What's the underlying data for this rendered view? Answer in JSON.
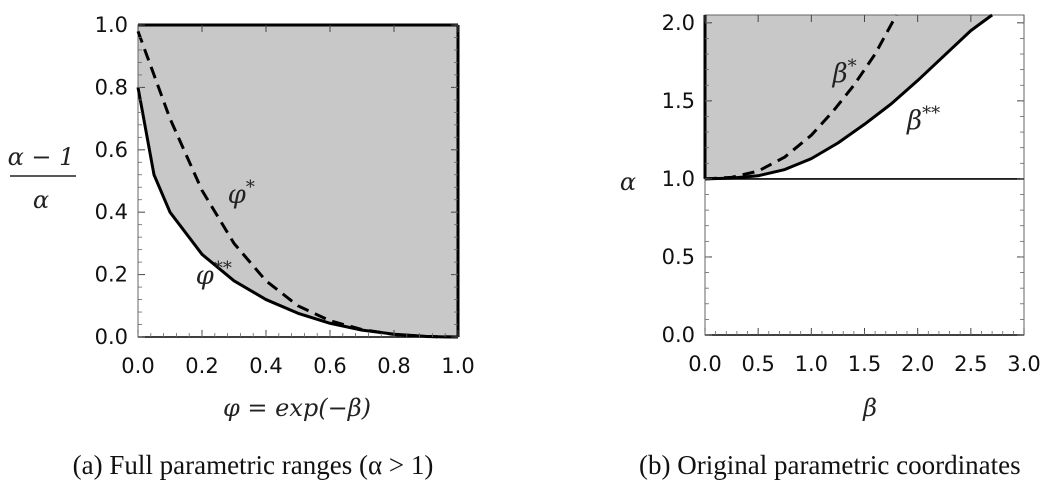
{
  "chart_data": [
    {
      "type": "area",
      "title": "",
      "xlabel": "φ = exp(−β)",
      "ylabel_numerator": "α − 1",
      "ylabel_denominator": "α",
      "xlim": [
        0,
        1
      ],
      "ylim": [
        0,
        1
      ],
      "x_ticks": [
        "0.0",
        "0.2",
        "0.4",
        "0.6",
        "0.8",
        "1.0"
      ],
      "y_ticks": [
        "0.0",
        "0.2",
        "0.4",
        "0.6",
        "0.8",
        "1.0"
      ],
      "shaded_region": "above φ** curve",
      "fill_color": "#c8c8c8",
      "series": [
        {
          "name": "φ**",
          "style": "solid",
          "x": [
            0,
            0.05,
            0.1,
            0.2,
            0.3,
            0.4,
            0.5,
            0.6,
            0.7,
            0.8,
            0.9,
            0.95,
            1.0
          ],
          "y": [
            0.8,
            0.52,
            0.4,
            0.265,
            0.18,
            0.12,
            0.076,
            0.044,
            0.022,
            0.009,
            0.002,
            0.0005,
            0
          ]
        },
        {
          "name": "φ*",
          "style": "dashed",
          "x": [
            0,
            0.05,
            0.1,
            0.2,
            0.3,
            0.4,
            0.5,
            0.6,
            0.7,
            0.8,
            0.9,
            1.0
          ],
          "y": [
            0.98,
            0.84,
            0.7,
            0.47,
            0.3,
            0.18,
            0.1,
            0.052,
            0.024,
            0.008,
            0.0015,
            0
          ]
        }
      ],
      "annotations": [
        {
          "label": "φ*",
          "x": 0.28,
          "y": 0.43
        },
        {
          "label": "φ**",
          "x": 0.18,
          "y": 0.17
        }
      ],
      "caption": "(a) Full parametric ranges (α > 1)"
    },
    {
      "type": "area",
      "title": "",
      "xlabel": "β",
      "ylabel": "α",
      "xlim": [
        0,
        3
      ],
      "ylim": [
        0,
        2.05
      ],
      "x_ticks": [
        "0.0",
        "0.5",
        "1.0",
        "1.5",
        "2.0",
        "2.5",
        "3.0"
      ],
      "y_ticks": [
        "0.0",
        "0.5",
        "1.0",
        "1.5",
        "2.0"
      ],
      "hlines": [
        1.0
      ],
      "shaded_region": "α > 1, above β** curve",
      "fill_color": "#c8c8c8",
      "series": [
        {
          "name": "β**",
          "style": "solid",
          "x": [
            0,
            0.25,
            0.5,
            0.75,
            1.0,
            1.25,
            1.5,
            1.75,
            2.0,
            2.25,
            2.5,
            2.7
          ],
          "y": [
            1.0,
            1.005,
            1.02,
            1.06,
            1.13,
            1.23,
            1.35,
            1.48,
            1.63,
            1.79,
            1.95,
            2.05
          ]
        },
        {
          "name": "β*",
          "style": "dashed",
          "x": [
            0,
            0.25,
            0.5,
            0.75,
            1.0,
            1.2,
            1.4,
            1.6,
            1.8
          ],
          "y": [
            1.0,
            1.01,
            1.05,
            1.14,
            1.28,
            1.43,
            1.6,
            1.8,
            2.05
          ]
        }
      ],
      "annotations": [
        {
          "label": "β*",
          "x": 1.2,
          "y": 1.62
        },
        {
          "label": "β**",
          "x": 1.9,
          "y": 1.32
        }
      ],
      "caption": "(b) Original parametric coordinates"
    }
  ]
}
